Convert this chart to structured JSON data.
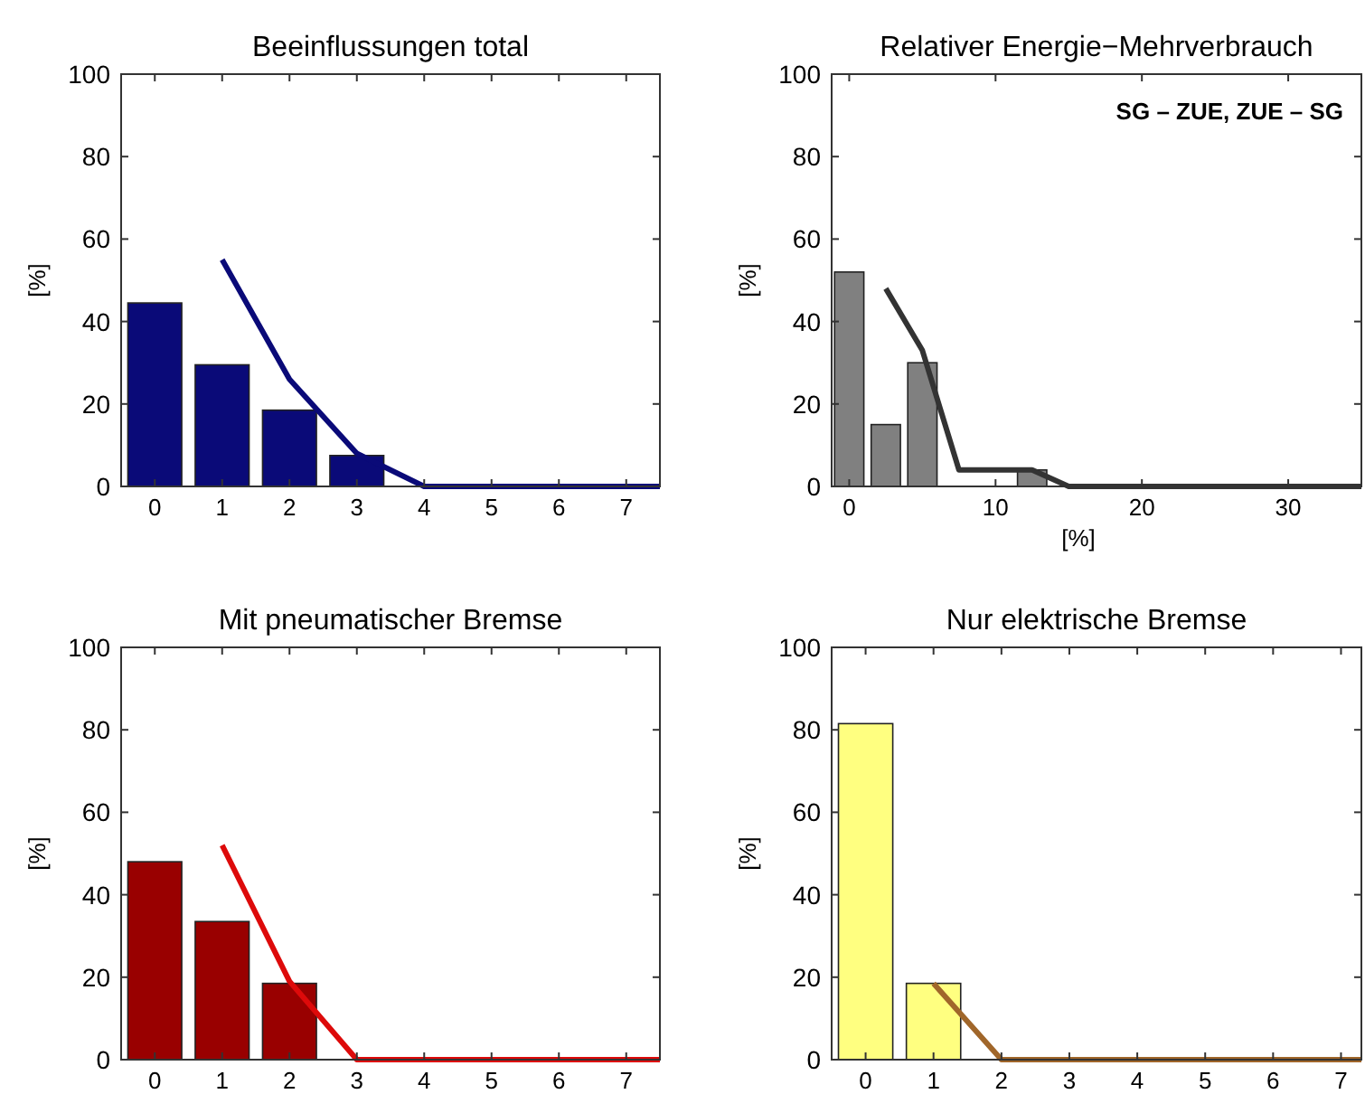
{
  "chart_data": [
    {
      "type": "bar",
      "title": "Beeinflussungen total",
      "ylabel": "[%]",
      "xlim": [
        -0.5,
        7.5
      ],
      "xticks": [
        0,
        1,
        2,
        3,
        4,
        5,
        6,
        7
      ],
      "ylim": [
        0,
        100
      ],
      "yticks": [
        0,
        20,
        40,
        60,
        80,
        100
      ],
      "grid": false,
      "series": [
        {
          "color": "#0a0a78",
          "x": [
            0,
            1,
            2,
            3
          ],
          "values": [
            44.5,
            29.5,
            18.5,
            7.5
          ]
        },
        {
          "type": "line",
          "color": "#0a0a78",
          "x": [
            1,
            2,
            3,
            4,
            7.5
          ],
          "values": [
            55,
            26,
            8,
            0,
            0
          ]
        }
      ]
    },
    {
      "type": "bar",
      "title": "Relativer Energie−Mehrverbrauch",
      "ylabel": "[%]",
      "xlabel": "[%]",
      "annotations": [
        "SG – ZUE, ZUE – SG"
      ],
      "xlim": [
        -1.2,
        35
      ],
      "xticks": [
        0,
        10,
        20,
        30
      ],
      "ylim": [
        0,
        100
      ],
      "yticks": [
        0,
        20,
        40,
        60,
        80,
        100
      ],
      "grid": false,
      "series": [
        {
          "color": "#808080",
          "x": [
            0,
            2.5,
            5,
            12.5
          ],
          "values": [
            52,
            15,
            30,
            4
          ]
        },
        {
          "type": "line",
          "color": "#333333",
          "x": [
            2.5,
            5,
            7.5,
            12.5,
            15,
            35
          ],
          "values": [
            48,
            33,
            4,
            4,
            0,
            0
          ]
        }
      ]
    },
    {
      "type": "bar",
      "title": "Mit pneumatischer Bremse",
      "ylabel": "[%]",
      "xlim": [
        -0.5,
        7.5
      ],
      "xticks": [
        0,
        1,
        2,
        3,
        4,
        5,
        6,
        7
      ],
      "ylim": [
        0,
        100
      ],
      "yticks": [
        0,
        20,
        40,
        60,
        80,
        100
      ],
      "grid": false,
      "series": [
        {
          "color": "#990000",
          "x": [
            0,
            1,
            2
          ],
          "values": [
            48,
            33.5,
            18.5
          ]
        },
        {
          "type": "line",
          "color": "#dd0a0a",
          "x": [
            1,
            2,
            3,
            7.5
          ],
          "values": [
            52,
            19,
            0,
            0
          ]
        }
      ]
    },
    {
      "type": "bar",
      "title": "Nur elektrische Bremse",
      "ylabel": "[%]",
      "xlim": [
        -0.5,
        7.3
      ],
      "xticks": [
        0,
        1,
        2,
        3,
        4,
        5,
        6,
        7
      ],
      "ylim": [
        0,
        100
      ],
      "yticks": [
        0,
        20,
        40,
        60,
        80,
        100
      ],
      "grid": false,
      "series": [
        {
          "color": "#ffff80",
          "x": [
            0,
            1
          ],
          "values": [
            81.5,
            18.5
          ]
        },
        {
          "type": "line",
          "color": "#a0662a",
          "x": [
            1,
            2,
            7.3
          ],
          "values": [
            18.5,
            0,
            0
          ]
        }
      ]
    }
  ]
}
